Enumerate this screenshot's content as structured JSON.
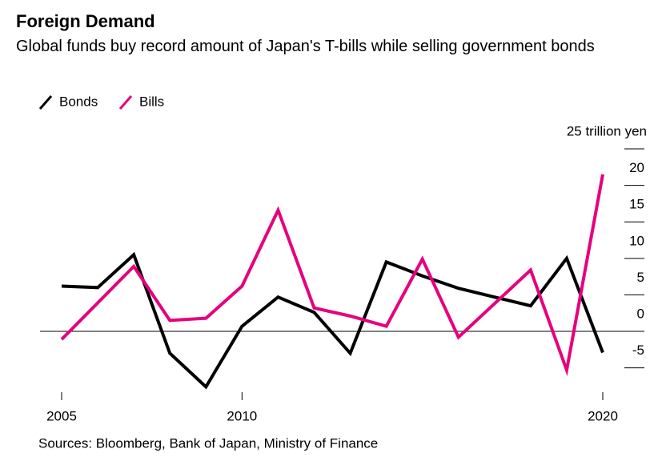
{
  "chart_data": {
    "type": "line",
    "title": "Foreign Demand",
    "subtitle": "Global funds buy record amount of Japan's T-bills while selling government bonds",
    "source": "Sources: Bloomberg, Bank of Japan, Ministry of Finance",
    "x": [
      2005,
      2006,
      2007,
      2008,
      2009,
      2010,
      2011,
      2012,
      2013,
      2014,
      2015,
      2016,
      2017,
      2018,
      2019,
      2020
    ],
    "series": [
      {
        "name": "Bonds",
        "color": "#000000",
        "values": [
          6.2,
          6.0,
          10.5,
          -3.0,
          -7.6,
          0.7,
          4.7,
          2.6,
          -3.0,
          9.5,
          7.6,
          5.9,
          4.7,
          3.5,
          10.0,
          -2.9
        ]
      },
      {
        "name": "Bills",
        "color": "#e6007e",
        "values": [
          -1.1,
          3.9,
          8.9,
          1.5,
          1.8,
          6.2,
          16.6,
          3.2,
          2.1,
          0.7,
          9.9,
          -0.8,
          3.8,
          8.4,
          -5.3,
          21.5
        ]
      }
    ],
    "xlim": [
      2005,
      2020
    ],
    "xticks": [
      2005,
      2010,
      2020
    ],
    "ylim": [
      -8,
      25
    ],
    "yticks": [
      {
        "value": 25,
        "label": "25 trillion yen"
      },
      20,
      15,
      10,
      5,
      0,
      -5
    ]
  }
}
